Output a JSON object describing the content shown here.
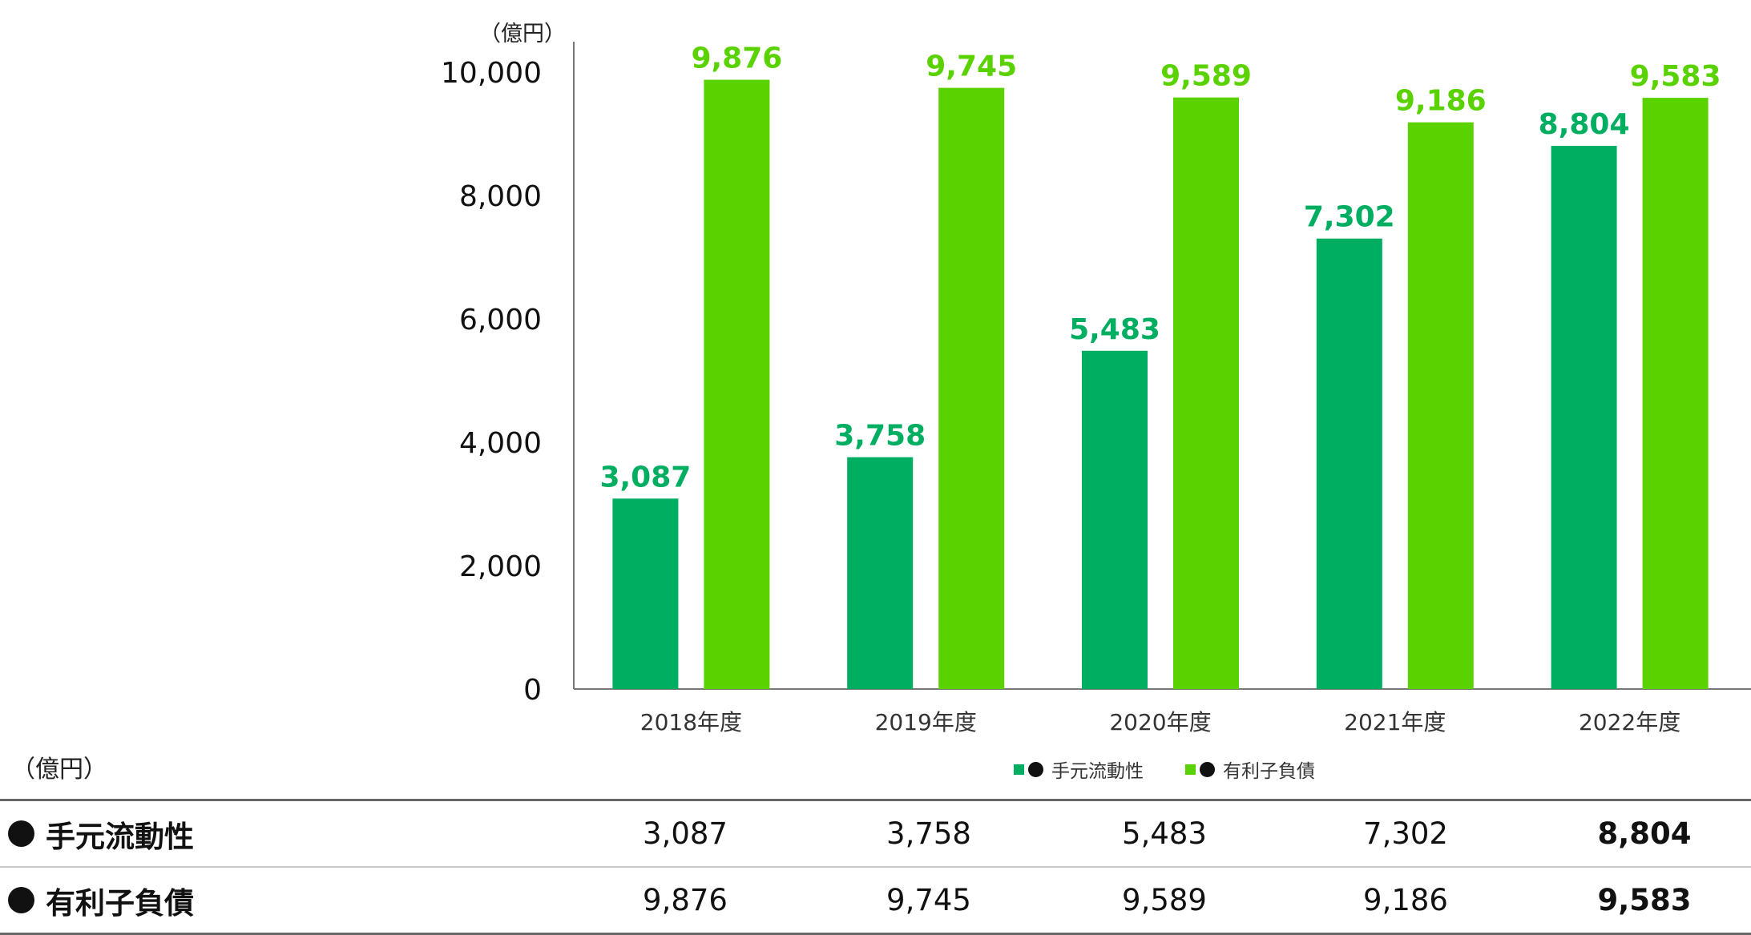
{
  "chart_data": {
    "type": "bar",
    "unit_label": "（億円）",
    "categories": [
      "2018年度",
      "2019年度",
      "2020年度",
      "2021年度",
      "2022年度"
    ],
    "series": [
      {
        "name": "手元流動性",
        "color": "#00ae62",
        "values": [
          3087,
          3758,
          5483,
          7302,
          8804
        ],
        "value_labels": [
          "3,087",
          "3,758",
          "5,483",
          "7,302",
          "8,804"
        ]
      },
      {
        "name": "有利子負債",
        "color": "#5ad200",
        "values": [
          9876,
          9745,
          9589,
          9186,
          9583
        ],
        "value_labels": [
          "9,876",
          "9,745",
          "9,589",
          "9,186",
          "9,583"
        ]
      }
    ],
    "yticks": [
      0,
      2000,
      4000,
      6000,
      8000,
      10000
    ],
    "ytick_labels": [
      "0",
      "2,000",
      "4,000",
      "6,000",
      "8,000",
      "10,000"
    ],
    "ylim": [
      0,
      10500
    ],
    "legend_position": "bottom",
    "grid": false
  },
  "legend": [
    {
      "label": "手元流動性",
      "color": "#00ae62"
    },
    {
      "label": "有利子負債",
      "color": "#5ad200"
    }
  ],
  "table": {
    "unit_label": "（億円）",
    "rows": [
      {
        "label": "手元流動性",
        "values": [
          "3,087",
          "3,758",
          "5,483",
          "7,302",
          "8,804"
        ]
      },
      {
        "label": "有利子負債",
        "values": [
          "9,876",
          "9,745",
          "9,589",
          "9,186",
          "9,583"
        ]
      }
    ],
    "bold_last_column": true
  }
}
